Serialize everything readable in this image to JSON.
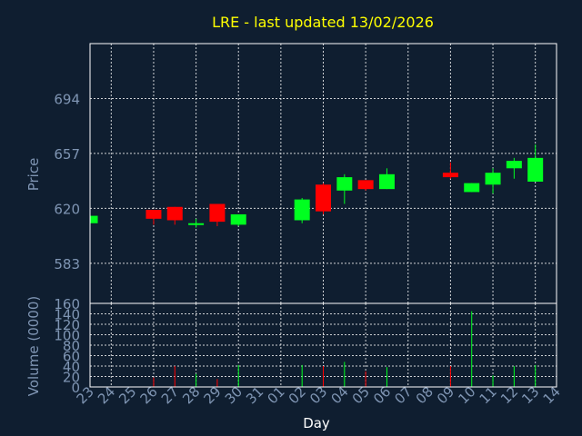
{
  "chart_data": {
    "title": "LRE - last updated 13/02/2026",
    "colors": {
      "background": "#0f1e30",
      "title": "#ffff00",
      "axis_text": "#7f95b3",
      "grid": "#ffffff",
      "up": "#00ff20",
      "down": "#ff0000"
    },
    "price_panel": {
      "type": "candlestick",
      "ylabel": "Price",
      "ylim": [
        556,
        731
      ],
      "yticks": [
        "583",
        "620",
        "657",
        "694"
      ],
      "ytick_values": [
        583,
        620,
        657,
        694
      ],
      "grid": true
    },
    "volume_panel": {
      "type": "bar",
      "ylabel": "Volume (0000)",
      "ylim": [
        0,
        160
      ],
      "yticks": [
        "0",
        "20",
        "40",
        "60",
        "80",
        "100",
        "120",
        "140",
        "160"
      ],
      "ytick_values": [
        0,
        20,
        40,
        60,
        80,
        100,
        120,
        140,
        160
      ],
      "grid": true
    },
    "xlabel": "Day",
    "x_ticks": [
      "23",
      "24",
      "25",
      "26",
      "27",
      "28",
      "29",
      "30",
      "31",
      "01",
      "02",
      "03",
      "04",
      "05",
      "06",
      "07",
      "08",
      "09",
      "10",
      "11",
      "12",
      "13",
      "14"
    ],
    "candles": [
      {
        "day": "23",
        "open": 610,
        "high": 615,
        "low": 610,
        "close": 615,
        "volume": 0
      },
      {
        "day": "26",
        "open": 619,
        "high": 619,
        "low": 609,
        "close": 613,
        "volume": 18
      },
      {
        "day": "27",
        "open": 621,
        "high": 621,
        "low": 609,
        "close": 612,
        "volume": 40
      },
      {
        "day": "28",
        "open": 609,
        "high": 613,
        "low": 607,
        "close": 610,
        "volume": 25
      },
      {
        "day": "29",
        "open": 623,
        "high": 623,
        "low": 608,
        "close": 611,
        "volume": 15
      },
      {
        "day": "30",
        "open": 609,
        "high": 616,
        "low": 608,
        "close": 616,
        "volume": 42
      },
      {
        "day": "02",
        "open": 612,
        "high": 627,
        "low": 610,
        "close": 626,
        "volume": 42
      },
      {
        "day": "03",
        "open": 636,
        "high": 637,
        "low": 616,
        "close": 618,
        "volume": 40
      },
      {
        "day": "04",
        "open": 632,
        "high": 643,
        "low": 623,
        "close": 641,
        "volume": 48
      },
      {
        "day": "05",
        "open": 639,
        "high": 639,
        "low": 632,
        "close": 633,
        "volume": 30
      },
      {
        "day": "06",
        "open": 633,
        "high": 647,
        "low": 633,
        "close": 643,
        "volume": 38
      },
      {
        "day": "09",
        "open": 644,
        "high": 651,
        "low": 640,
        "close": 641,
        "volume": 40
      },
      {
        "day": "10",
        "open": 631,
        "high": 637,
        "low": 631,
        "close": 637,
        "volume": 145
      },
      {
        "day": "11",
        "open": 636,
        "high": 647,
        "low": 630,
        "close": 644,
        "volume": 22
      },
      {
        "day": "12",
        "open": 647,
        "high": 654,
        "low": 640,
        "close": 652,
        "volume": 40
      },
      {
        "day": "13",
        "open": 638,
        "high": 663,
        "low": 638,
        "close": 654,
        "volume": 42
      }
    ]
  }
}
